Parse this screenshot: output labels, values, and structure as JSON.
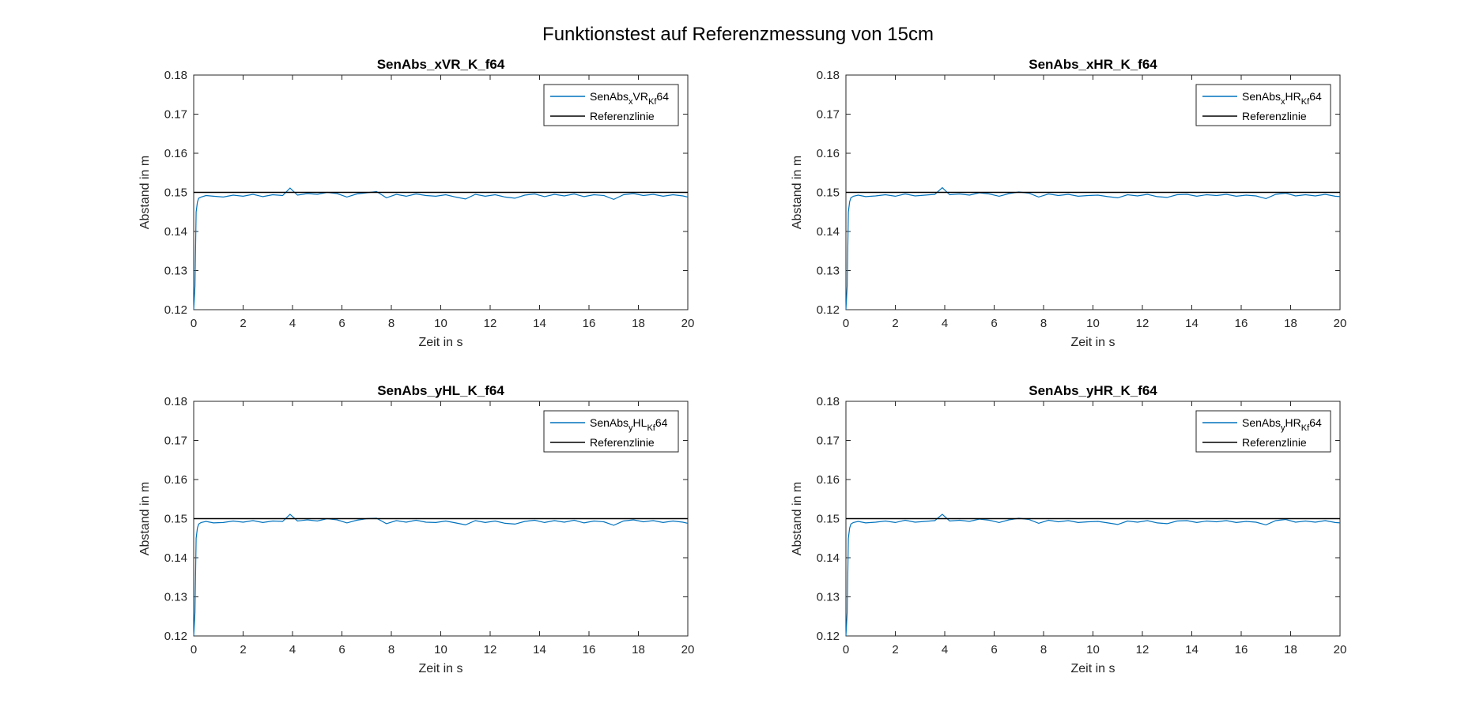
{
  "figure": {
    "title": "Funktionstest auf Referenzmessung von 15cm"
  },
  "colors": {
    "signal": "#0072BD",
    "reference": "#000000",
    "axes": "#262626"
  },
  "chart_data": [
    {
      "type": "line",
      "title": "SenAbs_xVR_K_f64",
      "xlabel": "Zeit in s",
      "ylabel": "Abstand in m",
      "xlim": [
        0,
        20
      ],
      "ylim": [
        0.12,
        0.18
      ],
      "xticks": [
        "0",
        "2",
        "4",
        "6",
        "8",
        "10",
        "12",
        "14",
        "16",
        "18",
        "20"
      ],
      "yticks": [
        "0.12",
        "0.13",
        "0.14",
        "0.15",
        "0.16",
        "0.17",
        "0.18"
      ],
      "legend_position": "top-right",
      "series": [
        {
          "name": "SenAbs_xVR_Kf64",
          "legend": {
            "base": "SenAbs",
            "sub1": "x",
            "mid": "VR",
            "sub2": "Kf",
            "tail": "64"
          },
          "x": [
            0,
            0.05,
            0.1,
            0.15,
            0.2,
            0.3,
            0.5,
            0.8,
            1.2,
            1.6,
            2,
            2.4,
            2.8,
            3.2,
            3.6,
            3.9,
            4.2,
            4.6,
            5,
            5.4,
            5.8,
            6.2,
            6.6,
            7,
            7.4,
            7.8,
            8.2,
            8.6,
            9,
            9.4,
            9.8,
            10.2,
            10.6,
            11,
            11.4,
            11.8,
            12.2,
            12.6,
            13,
            13.4,
            13.8,
            14.2,
            14.6,
            15,
            15.4,
            15.8,
            16.2,
            16.6,
            17,
            17.4,
            17.8,
            18.2,
            18.6,
            19,
            19.4,
            19.8,
            20
          ],
          "y": [
            0.12,
            0.126,
            0.145,
            0.1475,
            0.1485,
            0.1488,
            0.1492,
            0.149,
            0.1488,
            0.1493,
            0.149,
            0.1495,
            0.1489,
            0.1494,
            0.1492,
            0.1511,
            0.1493,
            0.1497,
            0.1495,
            0.15,
            0.1497,
            0.1488,
            0.1496,
            0.1499,
            0.1502,
            0.1486,
            0.1495,
            0.149,
            0.1496,
            0.1492,
            0.149,
            0.1494,
            0.1488,
            0.1483,
            0.1495,
            0.149,
            0.1494,
            0.1488,
            0.1485,
            0.1493,
            0.1496,
            0.1489,
            0.1495,
            0.1491,
            0.1496,
            0.1489,
            0.1494,
            0.1492,
            0.1482,
            0.1494,
            0.1497,
            0.1492,
            0.1495,
            0.149,
            0.1494,
            0.1491,
            0.1488
          ]
        },
        {
          "name": "Referenzlinie",
          "x": [
            0,
            20
          ],
          "y": [
            0.15,
            0.15
          ]
        }
      ]
    },
    {
      "type": "line",
      "title": "SenAbs_xHR_K_f64",
      "xlabel": "Zeit in s",
      "ylabel": "Abstand in m",
      "xlim": [
        0,
        20
      ],
      "ylim": [
        0.12,
        0.18
      ],
      "xticks": [
        "0",
        "2",
        "4",
        "6",
        "8",
        "10",
        "12",
        "14",
        "16",
        "18",
        "20"
      ],
      "yticks": [
        "0.12",
        "0.13",
        "0.14",
        "0.15",
        "0.16",
        "0.17",
        "0.18"
      ],
      "legend_position": "top-right",
      "series": [
        {
          "name": "SenAbs_xHR_Kf64",
          "legend": {
            "base": "SenAbs",
            "sub1": "x",
            "mid": "HR",
            "sub2": "Kf",
            "tail": "64"
          },
          "x": [
            0,
            0.05,
            0.1,
            0.15,
            0.2,
            0.3,
            0.5,
            0.8,
            1.2,
            1.6,
            2,
            2.4,
            2.8,
            3.2,
            3.6,
            3.9,
            4.2,
            4.6,
            5,
            5.4,
            5.8,
            6.2,
            6.6,
            7,
            7.4,
            7.8,
            8.2,
            8.6,
            9,
            9.4,
            9.8,
            10.2,
            10.6,
            11,
            11.4,
            11.8,
            12.2,
            12.6,
            13,
            13.4,
            13.8,
            14.2,
            14.6,
            15,
            15.4,
            15.8,
            16.2,
            16.6,
            17,
            17.4,
            17.8,
            18.2,
            18.6,
            19,
            19.4,
            19.8,
            20
          ],
          "y": [
            0.12,
            0.126,
            0.145,
            0.1476,
            0.1486,
            0.149,
            0.1493,
            0.1489,
            0.1491,
            0.1494,
            0.149,
            0.1496,
            0.1491,
            0.1493,
            0.1495,
            0.1512,
            0.1494,
            0.1496,
            0.1493,
            0.1499,
            0.1496,
            0.149,
            0.1497,
            0.1501,
            0.1498,
            0.1488,
            0.1496,
            0.1492,
            0.1495,
            0.149,
            0.1492,
            0.1493,
            0.1489,
            0.1486,
            0.1494,
            0.1491,
            0.1495,
            0.1489,
            0.1487,
            0.1494,
            0.1495,
            0.149,
            0.1494,
            0.1492,
            0.1495,
            0.149,
            0.1493,
            0.1491,
            0.1484,
            0.1495,
            0.1498,
            0.1491,
            0.1494,
            0.1491,
            0.1495,
            0.149,
            0.1489
          ]
        },
        {
          "name": "Referenzlinie",
          "x": [
            0,
            20
          ],
          "y": [
            0.15,
            0.15
          ]
        }
      ]
    },
    {
      "type": "line",
      "title": "SenAbs_yHL_K_f64",
      "xlabel": "Zeit in s",
      "ylabel": "Abstand in m",
      "xlim": [
        0,
        20
      ],
      "ylim": [
        0.12,
        0.18
      ],
      "xticks": [
        "0",
        "2",
        "4",
        "6",
        "8",
        "10",
        "12",
        "14",
        "16",
        "18",
        "20"
      ],
      "yticks": [
        "0.12",
        "0.13",
        "0.14",
        "0.15",
        "0.16",
        "0.17",
        "0.18"
      ],
      "legend_position": "top-right",
      "series": [
        {
          "name": "SenAbs_yHL_Kf64",
          "legend": {
            "base": "SenAbs",
            "sub1": "y",
            "mid": "HL",
            "sub2": "Kf",
            "tail": "64"
          },
          "x": [
            0,
            0.05,
            0.1,
            0.15,
            0.2,
            0.3,
            0.5,
            0.8,
            1.2,
            1.6,
            2,
            2.4,
            2.8,
            3.2,
            3.6,
            3.9,
            4.2,
            4.6,
            5,
            5.4,
            5.8,
            6.2,
            6.6,
            7,
            7.4,
            7.8,
            8.2,
            8.6,
            9,
            9.4,
            9.8,
            10.2,
            10.6,
            11,
            11.4,
            11.8,
            12.2,
            12.6,
            13,
            13.4,
            13.8,
            14.2,
            14.6,
            15,
            15.4,
            15.8,
            16.2,
            16.6,
            17,
            17.4,
            17.8,
            18.2,
            18.6,
            19,
            19.4,
            19.8,
            20
          ],
          "y": [
            0.12,
            0.126,
            0.145,
            0.1476,
            0.1486,
            0.149,
            0.1493,
            0.1489,
            0.149,
            0.1494,
            0.1491,
            0.1495,
            0.149,
            0.1494,
            0.1493,
            0.1511,
            0.1494,
            0.1497,
            0.1494,
            0.15,
            0.1497,
            0.1489,
            0.1496,
            0.15,
            0.1501,
            0.1487,
            0.1495,
            0.1491,
            0.1496,
            0.1491,
            0.149,
            0.1494,
            0.1489,
            0.1484,
            0.1495,
            0.149,
            0.1494,
            0.1488,
            0.1486,
            0.1493,
            0.1496,
            0.149,
            0.1495,
            0.1491,
            0.1496,
            0.1489,
            0.1494,
            0.1492,
            0.1483,
            0.1494,
            0.1497,
            0.1492,
            0.1495,
            0.149,
            0.1494,
            0.1491,
            0.1488
          ]
        },
        {
          "name": "Referenzlinie",
          "x": [
            0,
            20
          ],
          "y": [
            0.15,
            0.15
          ]
        }
      ]
    },
    {
      "type": "line",
      "title": "SenAbs_yHR_K_f64",
      "xlabel": "Zeit in s",
      "ylabel": "Abstand in m",
      "xlim": [
        0,
        20
      ],
      "ylim": [
        0.12,
        0.18
      ],
      "xticks": [
        "0",
        "2",
        "4",
        "6",
        "8",
        "10",
        "12",
        "14",
        "16",
        "18",
        "20"
      ],
      "yticks": [
        "0.12",
        "0.13",
        "0.14",
        "0.15",
        "0.16",
        "0.17",
        "0.18"
      ],
      "legend_position": "top-right",
      "series": [
        {
          "name": "SenAbs_yHR_Kf64",
          "legend": {
            "base": "SenAbs",
            "sub1": "y",
            "mid": "HR",
            "sub2": "Kf",
            "tail": "64"
          },
          "x": [
            0,
            0.05,
            0.1,
            0.15,
            0.2,
            0.3,
            0.5,
            0.8,
            1.2,
            1.6,
            2,
            2.4,
            2.8,
            3.2,
            3.6,
            3.9,
            4.2,
            4.6,
            5,
            5.4,
            5.8,
            6.2,
            6.6,
            7,
            7.4,
            7.8,
            8.2,
            8.6,
            9,
            9.4,
            9.8,
            10.2,
            10.6,
            11,
            11.4,
            11.8,
            12.2,
            12.6,
            13,
            13.4,
            13.8,
            14.2,
            14.6,
            15,
            15.4,
            15.8,
            16.2,
            16.6,
            17,
            17.4,
            17.8,
            18.2,
            18.6,
            19,
            19.4,
            19.8,
            20
          ],
          "y": [
            0.12,
            0.126,
            0.145,
            0.1476,
            0.1486,
            0.149,
            0.1493,
            0.1489,
            0.1491,
            0.1494,
            0.149,
            0.1496,
            0.1491,
            0.1493,
            0.1495,
            0.1511,
            0.1494,
            0.1496,
            0.1493,
            0.1499,
            0.1496,
            0.149,
            0.1497,
            0.1501,
            0.1498,
            0.1488,
            0.1496,
            0.1492,
            0.1495,
            0.149,
            0.1492,
            0.1493,
            0.1489,
            0.1485,
            0.1494,
            0.1491,
            0.1495,
            0.1489,
            0.1487,
            0.1494,
            0.1495,
            0.149,
            0.1494,
            0.1492,
            0.1495,
            0.149,
            0.1493,
            0.1491,
            0.1484,
            0.1495,
            0.1498,
            0.1491,
            0.1494,
            0.1491,
            0.1495,
            0.149,
            0.1489
          ]
        },
        {
          "name": "Referenzlinie",
          "x": [
            0,
            20
          ],
          "y": [
            0.15,
            0.15
          ]
        }
      ]
    }
  ]
}
